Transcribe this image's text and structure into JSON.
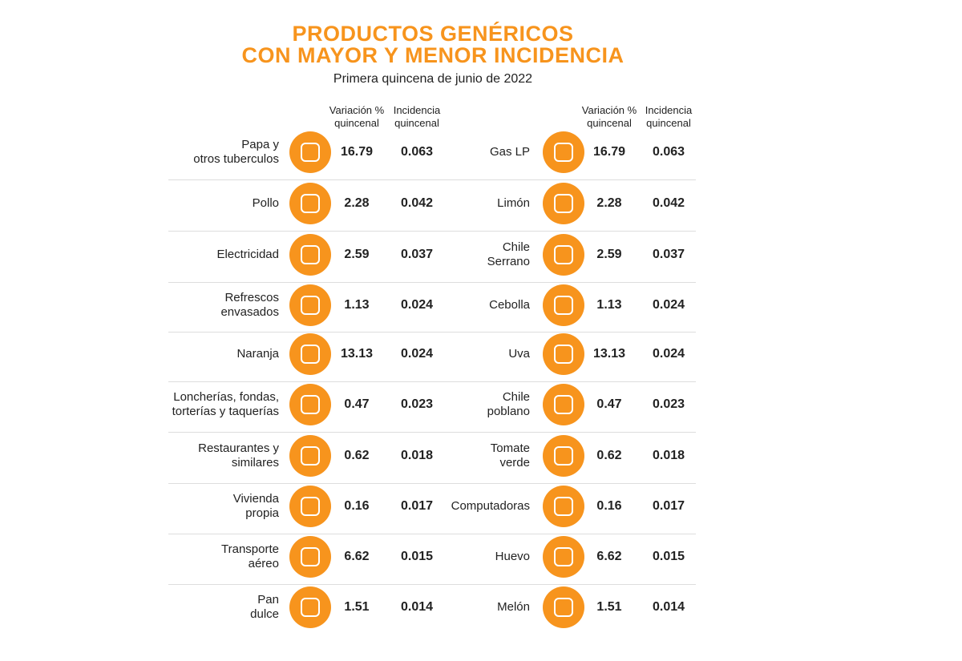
{
  "header": {
    "title_lines": [
      "PRODUCTOS GENÉRICOS",
      "CON MAYOR Y MENOR INCIDENCIA"
    ],
    "subtitle": "Primera quincena de junio de 2022"
  },
  "tables": [
    {
      "columns": [
        "Variación %\nquincenal",
        "Incidencia\nquincenal"
      ],
      "rows": [
        {
          "label": "Papa y\notros tuberculos",
          "variation": "16.79",
          "incidence": "0.063"
        },
        {
          "label": "Pollo",
          "variation": "2.28",
          "incidence": "0.042"
        },
        {
          "label": "Electricidad",
          "variation": "2.59",
          "incidence": "0.037"
        },
        {
          "label": "Refrescos\nenvasados",
          "variation": "1.13",
          "incidence": "0.024"
        },
        {
          "label": "Naranja",
          "variation": "13.13",
          "incidence": "0.024"
        },
        {
          "label": "Loncherías, fondas,\ntorterías y taquerías",
          "variation": "0.47",
          "incidence": "0.023"
        },
        {
          "label": "Restaurantes y\nsimilares",
          "variation": "0.62",
          "incidence": "0.018"
        },
        {
          "label": "Vivienda\npropia",
          "variation": "0.16",
          "incidence": "0.017"
        },
        {
          "label": "Transporte\naéreo",
          "variation": "6.62",
          "incidence": "0.015"
        },
        {
          "label": "Pan\ndulce",
          "variation": "1.51",
          "incidence": "0.014"
        }
      ]
    },
    {
      "columns": [
        "Variación %\nquincenal",
        "Incidencia\nquincenal"
      ],
      "rows": [
        {
          "label": "Gas LP",
          "variation": "16.79",
          "incidence": "0.063"
        },
        {
          "label": "Limón",
          "variation": "2.28",
          "incidence": "0.042"
        },
        {
          "label": "Chile\nSerrano",
          "variation": "2.59",
          "incidence": "0.037"
        },
        {
          "label": "Cebolla",
          "variation": "1.13",
          "incidence": "0.024"
        },
        {
          "label": "Uva",
          "variation": "13.13",
          "incidence": "0.024"
        },
        {
          "label": "Chile\npoblano",
          "variation": "0.47",
          "incidence": "0.023"
        },
        {
          "label": "Tomate\nverde",
          "variation": "0.62",
          "incidence": "0.018"
        },
        {
          "label": "Computadoras",
          "variation": "0.16",
          "incidence": "0.017"
        },
        {
          "label": "Huevo",
          "variation": "6.62",
          "incidence": "0.015"
        },
        {
          "label": "Melón",
          "variation": "1.51",
          "incidence": "0.014"
        }
      ]
    }
  ]
}
